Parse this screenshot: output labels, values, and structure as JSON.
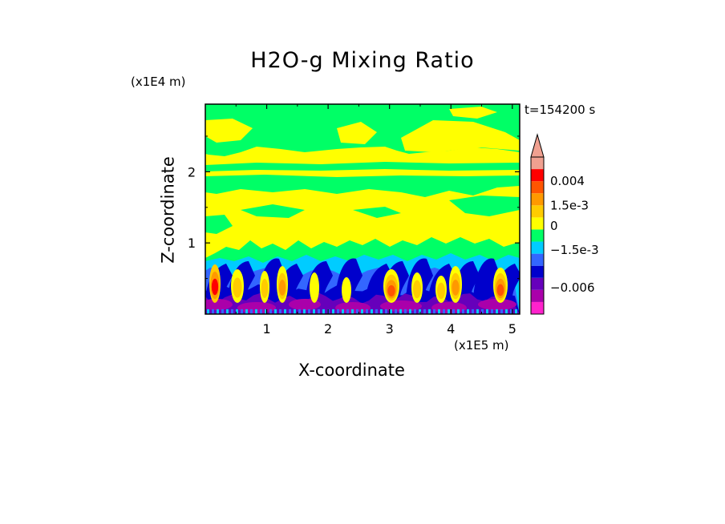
{
  "chart_data": {
    "type": "heatmap",
    "title": "H2O-g Mixing Ratio",
    "xlabel": "X-coordinate",
    "ylabel": "Z-coordinate",
    "x_multiplier": "(x1E5 m)",
    "y_multiplier": "(x1E4 m)",
    "time_label": "t=154200 s",
    "xlim": [
      0,
      5.12
    ],
    "ylim": [
      0,
      2.95
    ],
    "x_ticks": [
      1,
      2,
      3,
      4,
      5
    ],
    "y_ticks": [
      1,
      2
    ],
    "colorbar": {
      "colors": [
        "#ff22cc",
        "#aa00aa",
        "#6600bb",
        "#0000cc",
        "#3366ff",
        "#00ccff",
        "#00ff66",
        "#ffff00",
        "#ffcc00",
        "#ff9900",
        "#ff5500",
        "#ff0000",
        "#f0a090"
      ],
      "labels": [
        {
          "text": "0.004",
          "level": 11
        },
        {
          "text": "1.5e-3",
          "level": 9
        },
        {
          "text": "0",
          "level": 7.3
        },
        {
          "text": "−1.5e-3",
          "level": 5.3
        },
        {
          "text": "−0.006",
          "level": 2.2
        }
      ],
      "extend": "max"
    },
    "layers": [
      {
        "name": "upper",
        "color": "#00ff66"
      },
      {
        "name": "middle",
        "color": "#ffff00"
      },
      {
        "name": "lower",
        "color": "#00ccff"
      },
      {
        "name": "bottom",
        "color": "#6600bb"
      }
    ]
  }
}
